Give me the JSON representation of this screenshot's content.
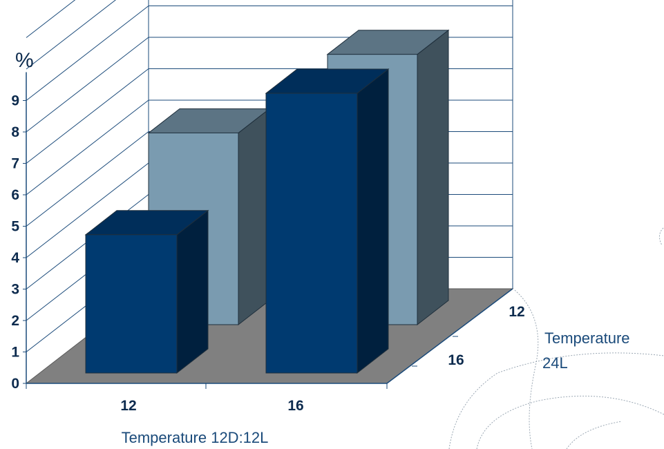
{
  "chart_data": {
    "type": "bar",
    "subtype": "3d-clustered",
    "unit_label": "%",
    "ylim": [
      0,
      11
    ],
    "y_ticks": [
      "0",
      "1",
      "2",
      "3",
      "4",
      "5",
      "6",
      "7",
      "8",
      "9"
    ],
    "x": {
      "title": "Temperature 12D:12L",
      "categories": [
        "12",
        "16"
      ]
    },
    "depth": {
      "title_line1": "Temperature",
      "title_line2": "24L",
      "categories": [
        "12",
        "16"
      ]
    },
    "series": [
      {
        "values": [
          4.4,
          8.9
        ],
        "color": "#003a70"
      },
      {
        "values": [
          6.1,
          8.6
        ],
        "color": "#7a9bb0"
      }
    ],
    "grid": true,
    "colors": {
      "floor": "#808080",
      "wall_line": "#1a4a7a",
      "front_dark": "#003a70",
      "front_light": "#7a9bb0"
    }
  }
}
